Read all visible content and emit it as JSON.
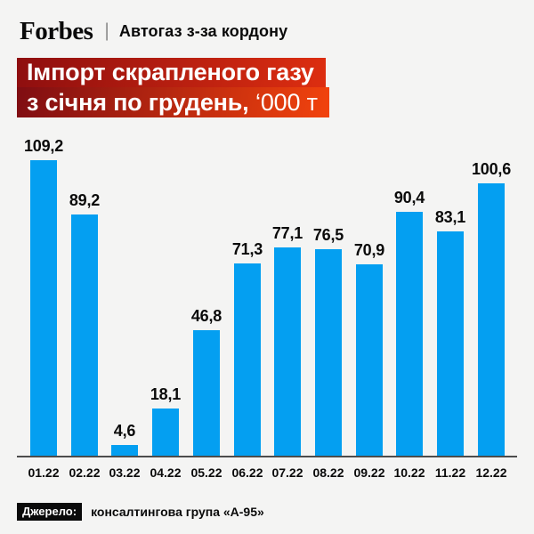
{
  "header": {
    "logo": "Forbes",
    "separator": "|",
    "kicker": "Автогаз з-за кордону"
  },
  "title": {
    "line1": "Імпорт скрапленого газу",
    "line2_bold": "з січня по грудень,",
    "line2_light": "‘000 т"
  },
  "chart_data": {
    "type": "bar",
    "title": "Імпорт скрапленого газу з січня по грудень, ‘000 т",
    "categories": [
      "01.22",
      "02.22",
      "03.22",
      "04.22",
      "05.22",
      "06.22",
      "07.22",
      "08.22",
      "09.22",
      "10.22",
      "11.22",
      "12.22"
    ],
    "values": [
      109.2,
      89.2,
      4.6,
      18.1,
      46.8,
      71.3,
      77.1,
      76.5,
      70.9,
      90.4,
      83.1,
      100.6
    ],
    "labels": [
      "109,2",
      "89,2",
      "4,6",
      "18,1",
      "46,8",
      "71,3",
      "77,1",
      "76,5",
      "70,9",
      "90,4",
      "83,1",
      "100,6"
    ],
    "xlabel": "",
    "ylabel": "",
    "ylim": [
      0,
      115
    ],
    "grid": false,
    "legend": false,
    "bar_color": "#049ff1"
  },
  "source": {
    "label": "Джерело:",
    "text": "консалтингова група «А-95»"
  },
  "colors": {
    "background": "#f4f4f3",
    "bar": "#049ff1",
    "title_gradient_dark": "#8e0e0f",
    "title_gradient_bright": "#f2430d",
    "axis_line": "#4c4c4c",
    "text": "#0a0a0a"
  }
}
